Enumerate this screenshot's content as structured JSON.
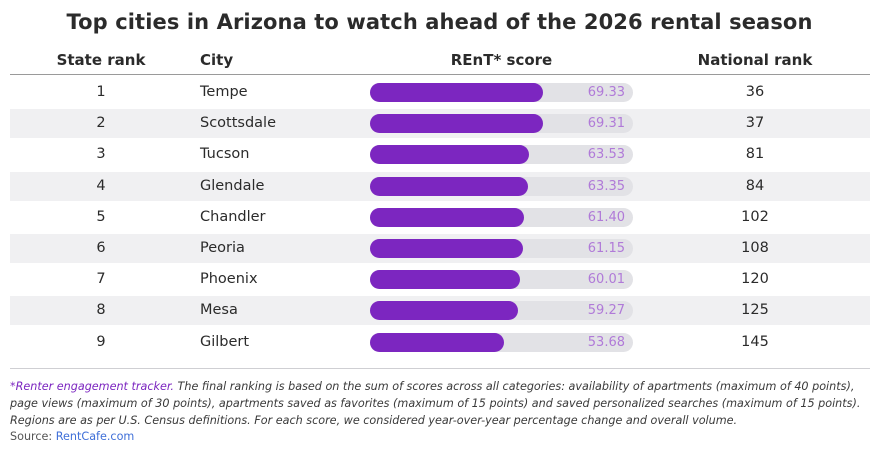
{
  "title": "Top cities in Arizona to watch ahead of the 2026 rental season",
  "columns": {
    "state_rank": "State rank",
    "city": "City",
    "score": "REnT* score",
    "national_rank": "National rank"
  },
  "chart_data": {
    "type": "bar",
    "title": "Top cities in Arizona to watch ahead of the 2026 rental season",
    "categories": [
      "Tempe",
      "Scottsdale",
      "Tucson",
      "Glendale",
      "Chandler",
      "Peoria",
      "Phoenix",
      "Mesa",
      "Gilbert"
    ],
    "values": [
      69.33,
      69.31,
      63.53,
      63.35,
      61.4,
      61.15,
      60.01,
      59.27,
      53.68
    ],
    "value_labels": [
      "69.33",
      "69.31",
      "63.53",
      "63.35",
      "61.40",
      "61.15",
      "60.01",
      "59.27",
      "53.68"
    ],
    "state_ranks": [
      "1",
      "2",
      "3",
      "4",
      "5",
      "6",
      "7",
      "8",
      "9"
    ],
    "national_ranks": [
      "36",
      "37",
      "81",
      "84",
      "102",
      "108",
      "120",
      "125",
      "145"
    ],
    "xlabel": "REnT* score",
    "ylabel": "City",
    "xlim": [
      0,
      100
    ],
    "orientation": "horizontal",
    "bar_color": "#7c26c0",
    "track_color": "#e2e2e6",
    "label_color": "#b07ad8"
  },
  "footnote": {
    "accent": "*Renter engagement tracker.",
    "text": " The final ranking is based on the sum of scores across all categories: availability of apartments (maximum of 40 points), page views (maximum of 30 points), apartments saved as favorites (maximum of 15 points) and saved personalized searches (maximum of 15 points). Regions are as per U.S. Census definitions. For each score, we considered year-over-year percentage change and overall volume."
  },
  "source": {
    "label": "Source: ",
    "link": "RentCafe.com"
  }
}
